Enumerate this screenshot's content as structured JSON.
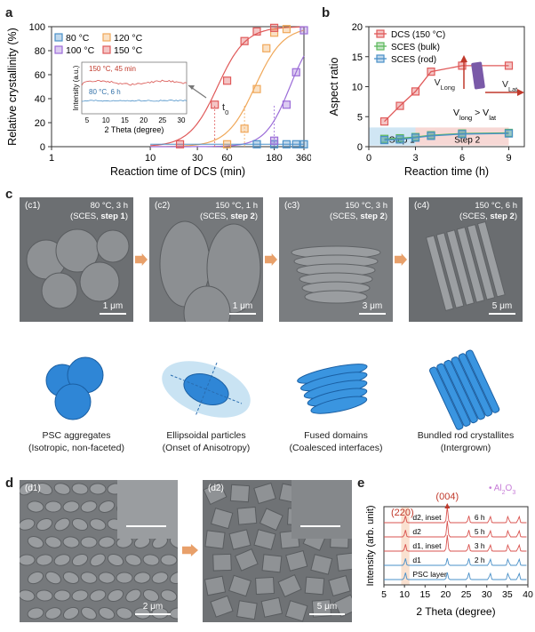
{
  "panels": {
    "a": {
      "letter": "a",
      "ylabel": "Relative crystallinity (%)",
      "xlabel": "Reaction time of DCS (min)",
      "inset": {
        "ylabel": "Intensity (a.u.)",
        "xlabel": "2 Theta (degree)",
        "trace_top": "150 °C, 45 min",
        "trace_bottom": "80 °C, 6 h",
        "ticks": [
          "5",
          "10",
          "15",
          "20",
          "25",
          "30"
        ]
      },
      "t0_label": "t",
      "t0_sub": "0"
    },
    "b": {
      "letter": "b",
      "ylabel": "Aspect ratio",
      "xlabel": "Reaction time (h)",
      "step1": "Step 1",
      "step2": "Step 2",
      "vlong": "V",
      "vlong_sub": "Long",
      "vlat": "V",
      "vlat_sub": "Lat",
      "compare_a": "V",
      "compare_a_sub": "long",
      "compare_op": " > ",
      "compare_b": "V",
      "compare_b_sub": "lat"
    },
    "c": {
      "letter": "c",
      "images": [
        {
          "id": "(c1)",
          "cond1": "80 °C, 3 h",
          "cond2": "(SCES, ",
          "step": "step 1",
          "close": ")",
          "scale": "1 μm"
        },
        {
          "id": "(c2)",
          "cond1": "150 °C, 1 h",
          "cond2": "(SCES, ",
          "step": "step 2",
          "close": ")",
          "scale": "1 μm"
        },
        {
          "id": "(c3)",
          "cond1": "150 °C, 3 h",
          "cond2": "(SCES, ",
          "step": "step 2",
          "close": ")",
          "scale": "3 μm"
        },
        {
          "id": "(c4)",
          "cond1": "150 °C, 6 h",
          "cond2": "(SCES, ",
          "step": "step 2",
          "close": ")",
          "scale": "5 μm"
        }
      ],
      "captions": [
        {
          "line1": "PSC aggregates",
          "line2": "(Isotropic, non-faceted)"
        },
        {
          "line1": "Ellipsoidal particles",
          "line2": "(Onset of Anisotropy)"
        },
        {
          "line1": "Fused domains",
          "line2": "(Coalesced interfaces)"
        },
        {
          "line1": "Bundled rod crystallites",
          "line2": "(Intergrown)"
        }
      ]
    },
    "d": {
      "letter": "d",
      "images": [
        {
          "id": "(d1)",
          "scale": "2 μm"
        },
        {
          "id": "(d2)",
          "scale": "5 μm"
        }
      ]
    },
    "e": {
      "letter": "e",
      "ylabel": "Intensity (arb. unit)",
      "xlabel": "2 Theta (degree)",
      "peak_004": "(004)",
      "peak_220": "(220)",
      "al2o3": "Al",
      "al2o3_sub1": "2",
      "al2o3_mid": "O",
      "al2o3_sub2": "3",
      "traces": [
        {
          "name": "d2, inset",
          "time": "6 h",
          "color": "#d9534f"
        },
        {
          "name": "d2",
          "time": "5 h",
          "color": "#d9534f"
        },
        {
          "name": "d1, inset",
          "time": "3 h",
          "color": "#d9534f"
        },
        {
          "name": "d1",
          "time": "2 h",
          "color": "#4a90c8"
        },
        {
          "name": "PSC layer",
          "time": "",
          "color": "#4a90c8"
        }
      ]
    }
  },
  "chart_data": [
    {
      "type": "line",
      "panel": "a",
      "title": "",
      "xlabel": "Reaction time of DCS (min)",
      "ylabel": "Relative crystallinity (%)",
      "xscale": "log",
      "xlim": [
        1,
        360
      ],
      "ylim": [
        0,
        100
      ],
      "xticks": [
        "1",
        "10",
        "30",
        "60",
        "180",
        "360"
      ],
      "yticks": [
        "0",
        "20",
        "40",
        "60",
        "80",
        "100"
      ],
      "legend": "top-left",
      "series": [
        {
          "name": "80 °C",
          "color": "#4a90c8",
          "x": [
            120,
            180,
            240,
            300,
            360
          ],
          "y": [
            2,
            2,
            2,
            2,
            2
          ]
        },
        {
          "name": "100 °C",
          "color": "#9b6cd8",
          "x": [
            180,
            240,
            300,
            360
          ],
          "y": [
            5,
            35,
            62,
            97
          ]
        },
        {
          "name": "120 °C",
          "color": "#f0a85a",
          "x": [
            60,
            90,
            120,
            150,
            180,
            240
          ],
          "y": [
            2,
            15,
            48,
            82,
            95,
            98
          ]
        },
        {
          "name": "150 °C",
          "color": "#e05a5a",
          "x": [
            20,
            45,
            60,
            90,
            120,
            180
          ],
          "y": [
            2,
            35,
            55,
            88,
            96,
            99
          ]
        }
      ]
    },
    {
      "type": "line",
      "panel": "b",
      "title": "",
      "xlabel": "Reaction time (h)",
      "ylabel": "Aspect ratio",
      "xlim": [
        0,
        10
      ],
      "ylim": [
        0,
        20
      ],
      "xticks": [
        "0",
        "3",
        "6",
        "9"
      ],
      "yticks": [
        "0",
        "5",
        "10",
        "15",
        "20"
      ],
      "legend": "top-left",
      "series": [
        {
          "name": "DCS (150 °C)",
          "color": "#e05a5a",
          "x": [
            1,
            2,
            3,
            4,
            6,
            9
          ],
          "y": [
            4.2,
            6.8,
            9.2,
            12.5,
            13.5,
            13.5
          ]
        },
        {
          "name": "SCES (bulk)",
          "color": "#5cb85c",
          "x": [
            1,
            2,
            3,
            4,
            6,
            9
          ],
          "y": [
            1.3,
            1.4,
            1.6,
            1.9,
            2.2,
            2.3
          ]
        },
        {
          "name": "SCES (rod)",
          "color": "#4a90c8",
          "x": [
            1,
            2,
            3,
            4,
            6,
            9
          ],
          "y": [
            1.1,
            1.2,
            1.5,
            1.8,
            2.1,
            2.2
          ]
        }
      ]
    },
    {
      "type": "line",
      "panel": "e",
      "title": "",
      "xlabel": "2 Theta (degree)",
      "ylabel": "Intensity (arb. unit)",
      "xlim": [
        5,
        40
      ],
      "xticks": [
        "5",
        "10",
        "15",
        "20",
        "25",
        "30",
        "35",
        "40"
      ],
      "peaks_2theta": [
        10.2,
        20.4,
        25.6,
        30.8,
        35.2,
        37.8
      ]
    }
  ]
}
